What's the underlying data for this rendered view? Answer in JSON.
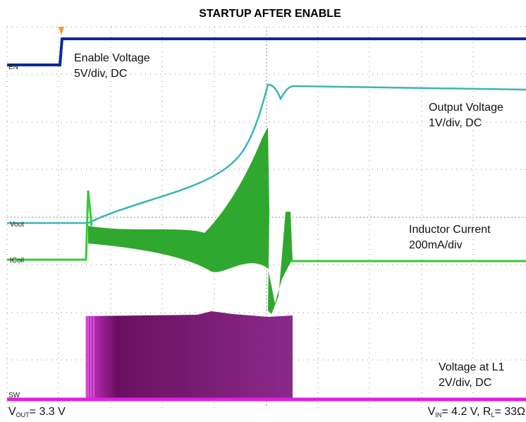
{
  "title": "STARTUP AFTER ENABLE",
  "channels": [
    {
      "tag": "EN",
      "label": [
        "Enable Voltage",
        "5V/div, DC"
      ]
    },
    {
      "tag": "Vout",
      "label": [
        "Output Voltage",
        "1V/div, DC"
      ]
    },
    {
      "tag": "ICoil",
      "label": [
        "Inductor Current",
        "200mA/div"
      ]
    },
    {
      "tag": "SW",
      "label": [
        "Voltage at L1",
        "2V/div, DC"
      ]
    }
  ],
  "footer": {
    "left": [
      "V",
      "OUT",
      "= 3.3 V"
    ],
    "right": [
      "V",
      "IN",
      "= 4.2 V,  R",
      "L",
      "= 33Ω"
    ]
  }
}
